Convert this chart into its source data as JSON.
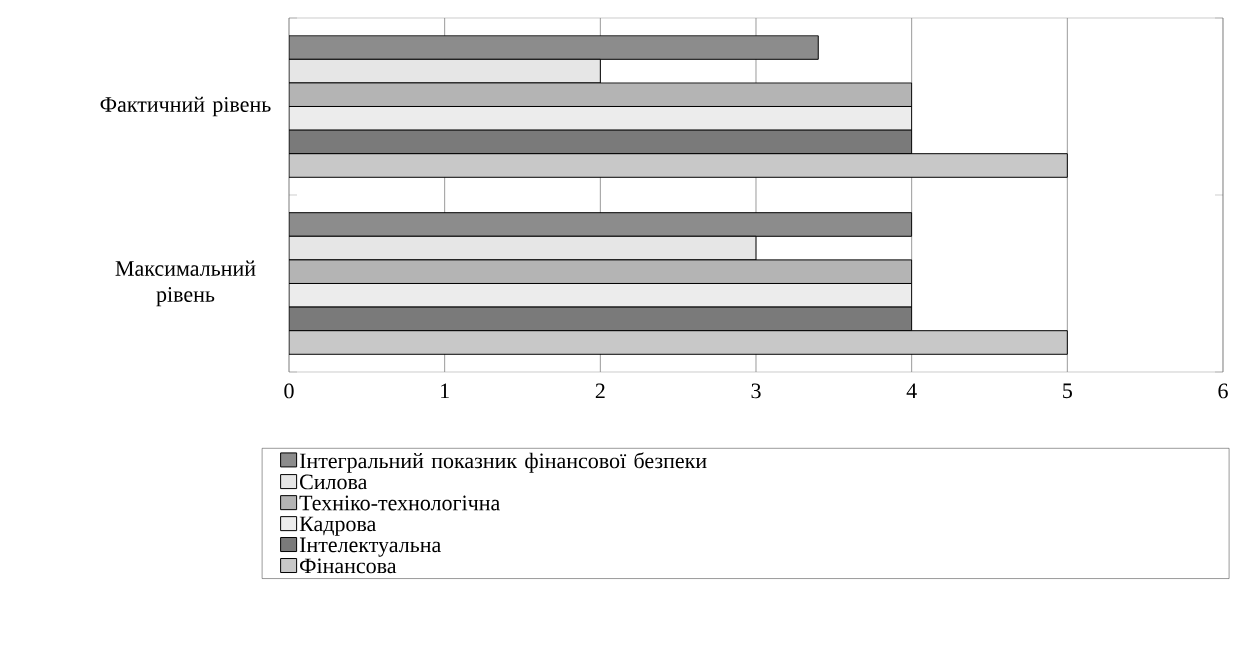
{
  "chart_data": {
    "type": "bar",
    "orientation": "horizontal",
    "categories": [
      "Фактичний рівень",
      "Максимальний рівень"
    ],
    "series": [
      {
        "name": "Інтегральний показник фінансової безпеки",
        "color": "#8c8c8c",
        "values": [
          3.4,
          4
        ]
      },
      {
        "name": "Силова",
        "color": "#e6e6e6",
        "values": [
          2,
          3
        ]
      },
      {
        "name": "Техніко-технологічна",
        "color": "#b4b4b4",
        "values": [
          4,
          4
        ]
      },
      {
        "name": "Кадрова",
        "color": "#ececec",
        "values": [
          4,
          4
        ]
      },
      {
        "name": "Інтелектуальна",
        "color": "#7a7a7a",
        "values": [
          4,
          4
        ]
      },
      {
        "name": "Фінансова",
        "color": "#c8c8c8",
        "values": [
          5,
          5
        ]
      }
    ],
    "xlim": [
      0,
      6
    ],
    "xticks": [
      0,
      1,
      2,
      3,
      4,
      5,
      6
    ],
    "grid": "x",
    "legend": "bottom"
  }
}
